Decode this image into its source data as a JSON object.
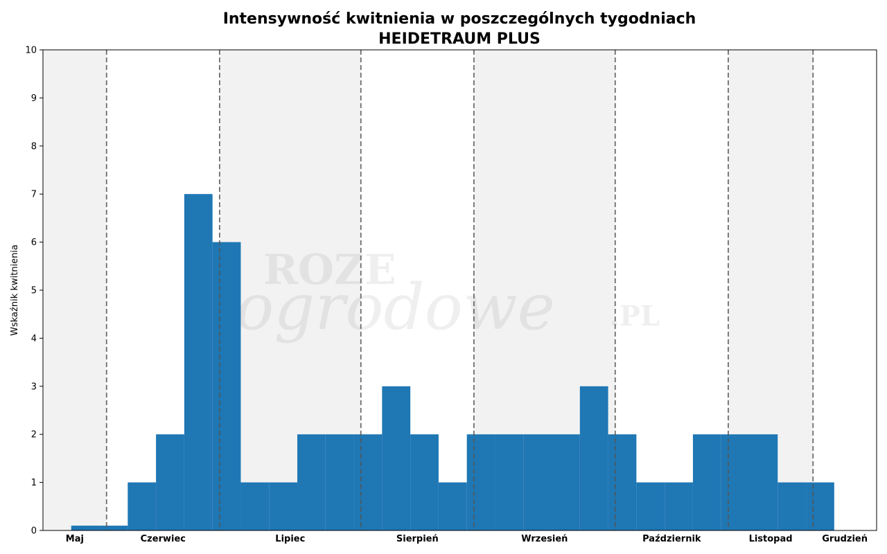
{
  "chart_data": {
    "type": "bar",
    "title": "Intensywność kwitnienia w poszczególnych tygodniach",
    "subtitle": "HEIDETRAUM PLUS",
    "xlabel": "",
    "ylabel": "Wskaźnik kwitnienia",
    "ylim": [
      0,
      10
    ],
    "yticks": [
      "0",
      "1",
      "2",
      "3",
      "4",
      "5",
      "6",
      "7",
      "8",
      "9",
      "10"
    ],
    "weeks": [
      1,
      2,
      3,
      4,
      5,
      6,
      7,
      8,
      9,
      10,
      11,
      12,
      13,
      14,
      15,
      16,
      17,
      18,
      19,
      20,
      21,
      22,
      23,
      24,
      25,
      26,
      27,
      28,
      29
    ],
    "values": [
      0,
      0.1,
      0.1,
      1,
      2,
      7,
      6,
      1,
      1,
      2,
      2,
      2,
      3,
      2,
      1,
      2,
      2,
      2,
      2,
      3,
      2,
      1,
      1,
      2,
      2,
      2,
      1,
      1,
      0
    ],
    "months": [
      {
        "label": "Maj",
        "start_week": 0,
        "end_week": 2.25
      },
      {
        "label": "Czerwiec",
        "start_week": 2.25,
        "end_week": 6.25
      },
      {
        "label": "Lipiec",
        "start_week": 6.25,
        "end_week": 11.25
      },
      {
        "label": "Sierpień",
        "start_week": 11.25,
        "end_week": 15.25
      },
      {
        "label": "Wrzesień",
        "start_week": 15.25,
        "end_week": 20.25
      },
      {
        "label": "Październik",
        "start_week": 20.25,
        "end_week": 24.25
      },
      {
        "label": "Listopad",
        "start_week": 24.25,
        "end_week": 27.25
      },
      {
        "label": "Grudzień",
        "start_week": 27.25,
        "end_week": 29.5
      }
    ],
    "grid": false,
    "bar_color": "#1f77b4",
    "shade_color": "#f2f2f2",
    "divider_color": "#555555"
  },
  "watermark": {
    "line1": "ROZE",
    "line2": "ogrodowe",
    "suffix": ".PL"
  }
}
